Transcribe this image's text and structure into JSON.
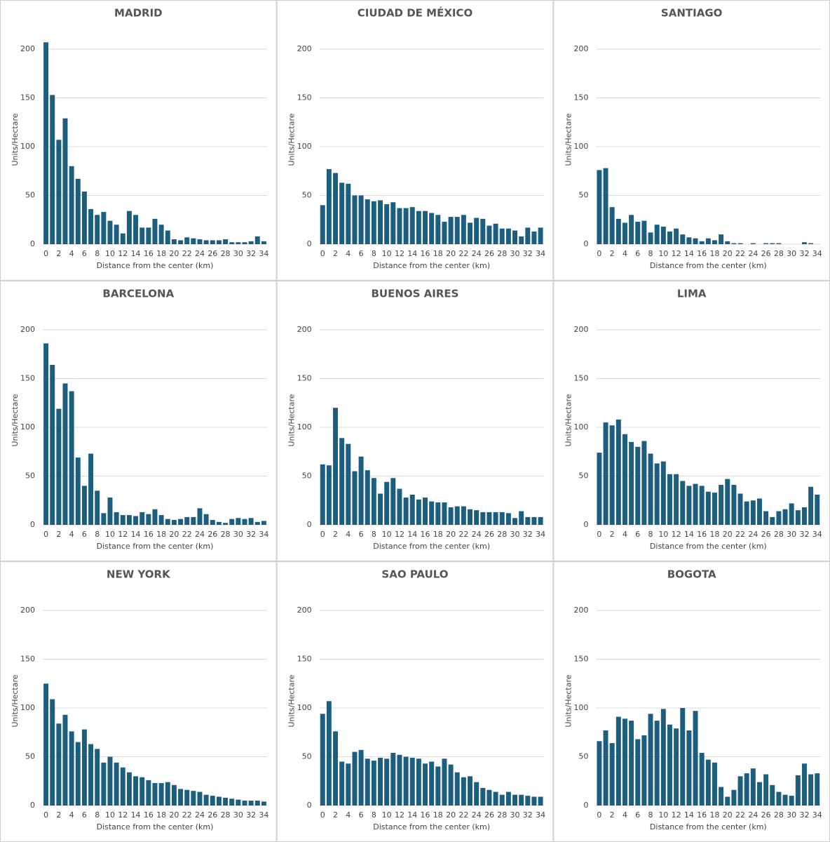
{
  "chart_data": [
    {
      "type": "bar",
      "title": "MADRID",
      "ylabel": "Units/Hectare",
      "xlabel": "Distance from the center (km)",
      "categories": [
        0,
        null,
        2,
        null,
        4,
        null,
        6,
        null,
        8,
        null,
        10,
        null,
        12,
        null,
        14,
        null,
        16,
        null,
        18,
        null,
        20,
        null,
        22,
        null,
        24,
        null,
        26,
        null,
        28,
        null,
        30,
        null,
        32,
        null,
        34
      ],
      "values": [
        207,
        153,
        107,
        129,
        80,
        67,
        54,
        36,
        30,
        33,
        24,
        20,
        11,
        34,
        30,
        17,
        17,
        26,
        20,
        14,
        5,
        4,
        7,
        6,
        5,
        4,
        4,
        4,
        5,
        2,
        2,
        2,
        3,
        8,
        3
      ],
      "color": "#1b5e80",
      "ylim": [
        0,
        200
      ],
      "yticks": [
        0,
        50,
        100,
        150,
        200
      ],
      "grid": true
    },
    {
      "type": "bar",
      "title": "CIUDAD DE MÉXICO",
      "ylabel": "Units/Hectare",
      "xlabel": "Distance from the center (km)",
      "categories": [
        0,
        null,
        2,
        null,
        4,
        null,
        6,
        null,
        8,
        null,
        10,
        null,
        12,
        null,
        14,
        null,
        16,
        null,
        18,
        null,
        20,
        null,
        22,
        null,
        24,
        null,
        26,
        null,
        28,
        null,
        30,
        null,
        32,
        null,
        34
      ],
      "values": [
        40,
        77,
        73,
        63,
        62,
        50,
        50,
        46,
        44,
        45,
        41,
        43,
        37,
        37,
        38,
        34,
        34,
        32,
        30,
        23,
        28,
        28,
        30,
        22,
        27,
        26,
        19,
        21,
        16,
        16,
        14,
        8,
        17,
        13,
        17
      ],
      "color": "#1b5e80",
      "ylim": [
        0,
        200
      ],
      "yticks": [
        0,
        50,
        100,
        150,
        200
      ],
      "grid": true
    },
    {
      "type": "bar",
      "title": "SANTIAGO",
      "ylabel": "Units/Hectare",
      "xlabel": "Distance from the center (km)",
      "categories": [
        0,
        null,
        2,
        null,
        4,
        null,
        6,
        null,
        8,
        null,
        10,
        null,
        12,
        null,
        14,
        null,
        16,
        null,
        18,
        null,
        20,
        null,
        22,
        null,
        24,
        null,
        26,
        null,
        28,
        null,
        30,
        null,
        32,
        null,
        34
      ],
      "values": [
        76,
        78,
        38,
        26,
        22,
        30,
        23,
        24,
        12,
        20,
        18,
        13,
        16,
        10,
        7,
        6,
        3,
        6,
        4,
        10,
        3,
        1,
        1,
        0,
        1,
        0,
        1,
        1,
        1,
        0,
        0,
        0,
        2,
        1,
        0
      ],
      "color": "#1b5e80",
      "ylim": [
        0,
        200
      ],
      "yticks": [
        0,
        50,
        100,
        150,
        200
      ],
      "grid": true
    },
    {
      "type": "bar",
      "title": "BARCELONA",
      "ylabel": "Units/Hectare",
      "xlabel": "Distance from the center (km)",
      "categories": [
        0,
        null,
        2,
        null,
        4,
        null,
        6,
        null,
        8,
        null,
        10,
        null,
        12,
        null,
        14,
        null,
        16,
        null,
        18,
        null,
        20,
        null,
        22,
        null,
        24,
        null,
        26,
        null,
        28,
        null,
        30,
        null,
        32,
        null,
        34
      ],
      "values": [
        186,
        164,
        119,
        145,
        137,
        69,
        40,
        73,
        35,
        12,
        28,
        13,
        10,
        10,
        9,
        13,
        11,
        16,
        10,
        6,
        5,
        6,
        8,
        8,
        17,
        11,
        5,
        3,
        2,
        6,
        7,
        6,
        7,
        3,
        4
      ],
      "color": "#1b5e80",
      "ylim": [
        0,
        200
      ],
      "yticks": [
        0,
        50,
        100,
        150,
        200
      ],
      "grid": true
    },
    {
      "type": "bar",
      "title": "BUENOS AIRES",
      "ylabel": "Units/Hectare",
      "xlabel": "Distance from the center (km)",
      "categories": [
        0,
        null,
        2,
        null,
        4,
        null,
        6,
        null,
        8,
        null,
        10,
        null,
        12,
        null,
        14,
        null,
        16,
        null,
        18,
        null,
        20,
        null,
        22,
        null,
        24,
        null,
        26,
        null,
        28,
        null,
        30,
        null,
        32,
        null,
        34
      ],
      "values": [
        62,
        61,
        120,
        89,
        83,
        55,
        70,
        56,
        48,
        32,
        44,
        48,
        37,
        28,
        31,
        26,
        28,
        24,
        23,
        23,
        18,
        19,
        19,
        16,
        15,
        13,
        13,
        13,
        13,
        12,
        7,
        14,
        8,
        8,
        8
      ],
      "color": "#1b5e80",
      "ylim": [
        0,
        200
      ],
      "yticks": [
        0,
        50,
        100,
        150,
        200
      ],
      "grid": true
    },
    {
      "type": "bar",
      "title": "LIMA",
      "ylabel": "Units/Hectare",
      "xlabel": "Distance from the center (km)",
      "categories": [
        0,
        null,
        2,
        null,
        4,
        null,
        6,
        null,
        8,
        null,
        10,
        null,
        12,
        null,
        14,
        null,
        16,
        null,
        18,
        null,
        20,
        null,
        22,
        null,
        24,
        null,
        26,
        null,
        28,
        null,
        30,
        null,
        32,
        null,
        34
      ],
      "values": [
        74,
        105,
        102,
        108,
        93,
        85,
        80,
        86,
        73,
        63,
        65,
        52,
        52,
        45,
        40,
        42,
        40,
        34,
        33,
        41,
        47,
        41,
        32,
        24,
        25,
        27,
        14,
        8,
        14,
        16,
        22,
        15,
        18,
        39,
        31
      ],
      "color": "#1b5e80",
      "ylim": [
        0,
        200
      ],
      "yticks": [
        0,
        50,
        100,
        150,
        200
      ],
      "grid": true
    },
    {
      "type": "bar",
      "title": "NEW YORK",
      "ylabel": "Units/Hectare",
      "xlabel": "Distance from the center (km)",
      "categories": [
        0,
        null,
        2,
        null,
        4,
        null,
        6,
        null,
        8,
        null,
        10,
        null,
        12,
        null,
        14,
        null,
        16,
        null,
        18,
        null,
        20,
        null,
        22,
        null,
        24,
        null,
        26,
        null,
        28,
        null,
        30,
        null,
        32,
        null,
        34
      ],
      "values": [
        125,
        109,
        84,
        93,
        76,
        65,
        78,
        63,
        58,
        44,
        50,
        44,
        39,
        34,
        30,
        29,
        26,
        23,
        23,
        24,
        21,
        17,
        16,
        15,
        14,
        11,
        10,
        9,
        8,
        7,
        6,
        5,
        5,
        5,
        4
      ],
      "color": "#1b5e80",
      "ylim": [
        0,
        200
      ],
      "yticks": [
        0,
        50,
        100,
        150,
        200
      ],
      "grid": true
    },
    {
      "type": "bar",
      "title": "SAO PAULO",
      "ylabel": "Units/Hectare",
      "xlabel": "Distance from the center (km)",
      "categories": [
        0,
        null,
        2,
        null,
        4,
        null,
        6,
        null,
        8,
        null,
        10,
        null,
        12,
        null,
        14,
        null,
        16,
        null,
        18,
        null,
        20,
        null,
        22,
        null,
        24,
        null,
        26,
        null,
        28,
        null,
        30,
        null,
        32,
        null,
        34
      ],
      "values": [
        94,
        107,
        76,
        45,
        43,
        55,
        57,
        48,
        46,
        49,
        48,
        54,
        52,
        50,
        49,
        48,
        43,
        45,
        40,
        48,
        42,
        34,
        29,
        30,
        24,
        18,
        16,
        14,
        11,
        14,
        11,
        11,
        10,
        9,
        9
      ],
      "color": "#1b5e80",
      "ylim": [
        0,
        200
      ],
      "yticks": [
        0,
        50,
        100,
        150,
        200
      ],
      "grid": true
    },
    {
      "type": "bar",
      "title": "BOGOTA",
      "ylabel": "Units/Hectare",
      "xlabel": "Distance from the center (km)",
      "categories": [
        0,
        null,
        2,
        null,
        4,
        null,
        6,
        null,
        8,
        null,
        10,
        null,
        12,
        null,
        14,
        null,
        16,
        null,
        18,
        null,
        20,
        null,
        22,
        null,
        24,
        null,
        26,
        null,
        28,
        null,
        30,
        null,
        32,
        null,
        34
      ],
      "values": [
        66,
        77,
        64,
        91,
        89,
        87,
        68,
        72,
        94,
        87,
        99,
        83,
        79,
        100,
        77,
        97,
        54,
        47,
        44,
        19,
        9,
        16,
        30,
        33,
        38,
        24,
        32,
        21,
        14,
        11,
        10,
        31,
        43,
        32,
        33
      ],
      "color": "#1b5e80",
      "ylim": [
        0,
        200
      ],
      "yticks": [
        0,
        50,
        100,
        150,
        200
      ],
      "grid": true
    }
  ]
}
